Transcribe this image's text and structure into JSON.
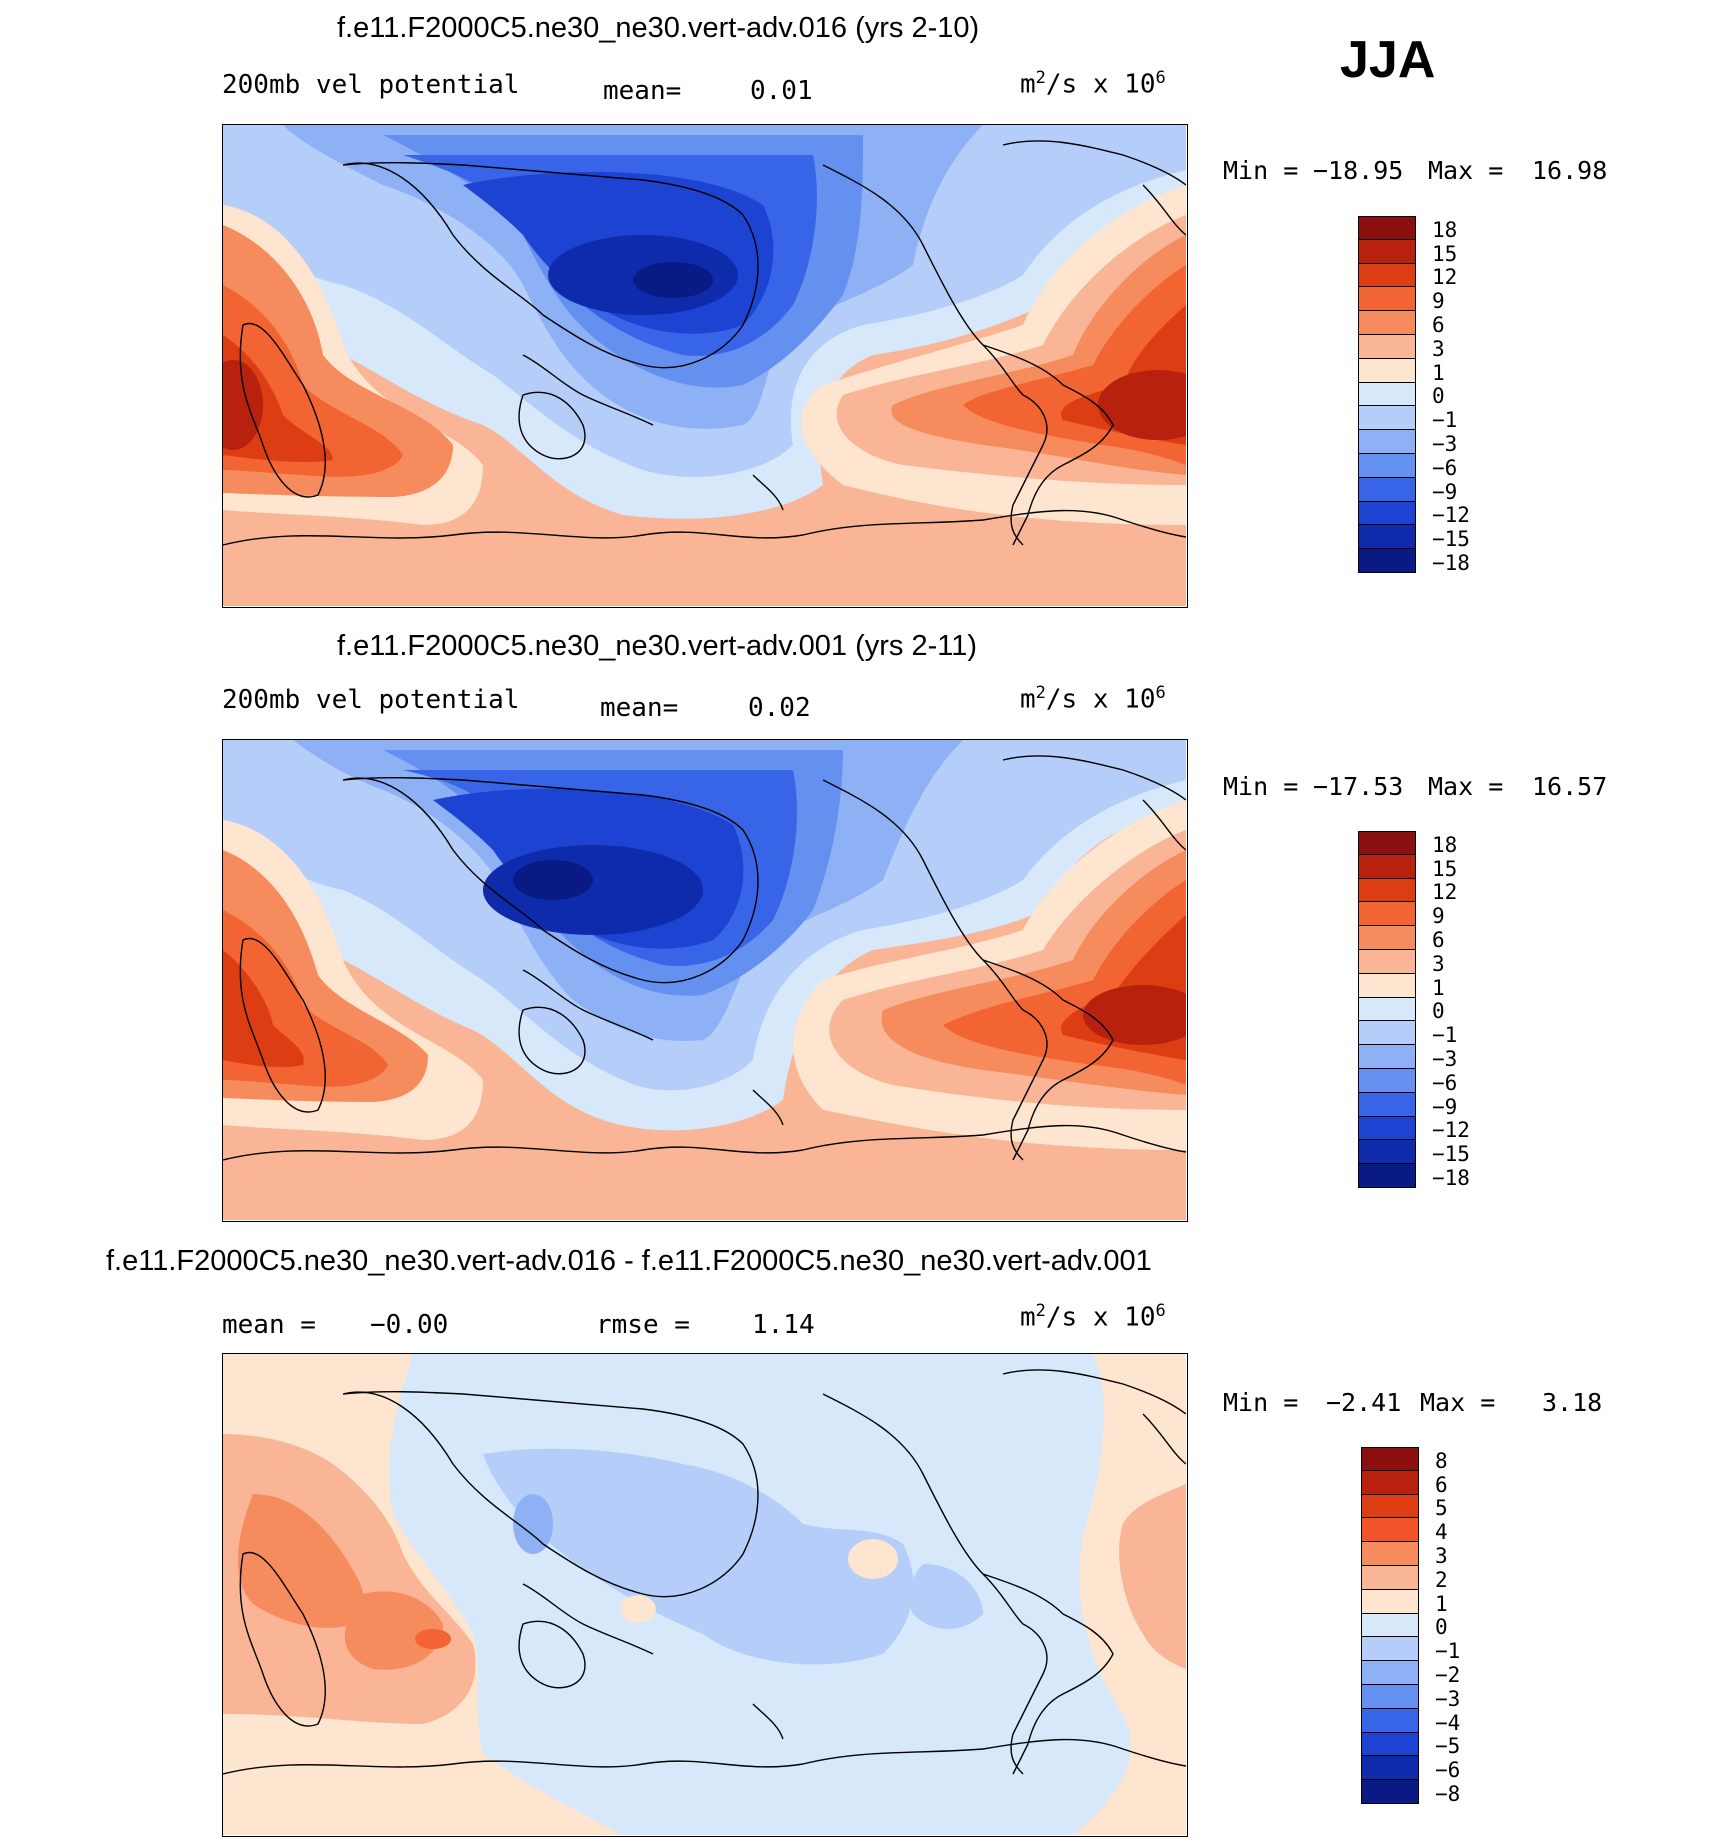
{
  "season": "JJA",
  "panels": [
    {
      "title": "f.e11.F2000C5.ne30_ne30.vert-adv.016 (yrs 2-10)",
      "left_label": "200mb vel potential",
      "mean_label": "mean=",
      "mean_value": "0.01",
      "units": "m2/s x 106",
      "units_base": "m",
      "units_exp": "2",
      "units_mid": "/s x 10",
      "units_exp2": "6",
      "min_label": "Min =",
      "min_value": "−18.95",
      "max_label": "Max =",
      "max_value": "16.98"
    },
    {
      "title": "f.e11.F2000C5.ne30_ne30.vert-adv.001 (yrs 2-11)",
      "left_label": "200mb vel potential",
      "mean_label": "mean=",
      "mean_value": "0.02",
      "units_base": "m",
      "units_exp": "2",
      "units_mid": "/s x 10",
      "units_exp2": "6",
      "min_label": "Min =",
      "min_value": "−17.53",
      "max_label": "Max =",
      "max_value": "16.57"
    },
    {
      "title": "f.e11.F2000C5.ne30_ne30.vert-adv.016 - f.e11.F2000C5.ne30_ne30.vert-adv.001",
      "mean_label": "mean =",
      "mean_value": "−0.00",
      "rmse_label": "rmse =",
      "rmse_value": "1.14",
      "units_base": "m",
      "units_exp": "2",
      "units_mid": "/s x 10",
      "units_exp2": "6",
      "min_label": "Min =",
      "min_value": "−2.41",
      "max_label": "Max =",
      "max_value": "3.18"
    }
  ],
  "colorbars": {
    "main": {
      "colors": [
        "#8a0f0f",
        "#b8210d",
        "#dd3d12",
        "#f26432",
        "#f68c5d",
        "#f9b596",
        "#fde5cf",
        "#d7e8fb",
        "#b4cdf9",
        "#8eb1f5",
        "#6490f0",
        "#3864e8",
        "#1c43d2",
        "#0e2bac",
        "#0a1a85"
      ],
      "labels": [
        "18",
        "15",
        "12",
        "9",
        "6",
        "3",
        "1",
        "0",
        "−1",
        "−3",
        "−6",
        "−9",
        "−12",
        "−15",
        "−18"
      ]
    },
    "diff": {
      "colors": [
        "#8a0f0f",
        "#b8210d",
        "#dd3d12",
        "#f4532a",
        "#f68c5d",
        "#f9b596",
        "#fde5cf",
        "#d7e8fb",
        "#b4cdf9",
        "#8eb1f5",
        "#6490f0",
        "#3864e8",
        "#1c43d2",
        "#0e2bac",
        "#0a1a85"
      ],
      "labels": [
        "8",
        "6",
        "5",
        "4",
        "3",
        "2",
        "1",
        "0",
        "−1",
        "−2",
        "−3",
        "−4",
        "−5",
        "−6",
        "−8"
      ]
    }
  }
}
